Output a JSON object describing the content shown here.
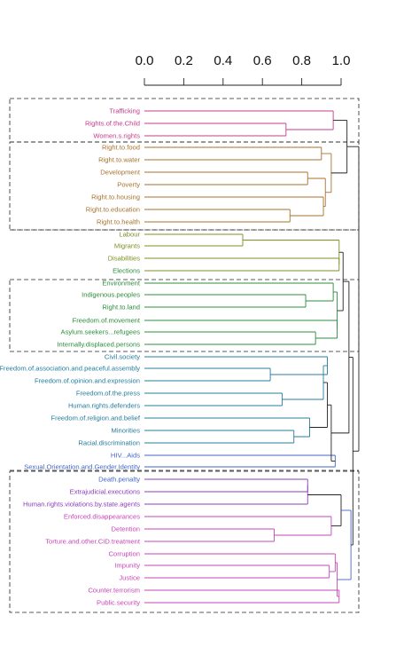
{
  "axis": {
    "ticks": [
      "0.0",
      "0.2",
      "0.4",
      "0.6",
      "0.8",
      "1.0"
    ]
  },
  "colors": {
    "magenta": "#c43c8a",
    "brown": "#a8722e",
    "olive": "#7c8f22",
    "green": "#2c8c3c",
    "teal": "#267c9e",
    "blue": "#4266c8",
    "purple": "#8c3cbc",
    "pink": "#c845b8",
    "black": "#222222"
  },
  "labels": [
    "Trafficking",
    "Rights.of.the.Child",
    "Women.s.rights",
    "Right.to.food",
    "Right.to.water",
    "Development",
    "Poverty",
    "Right.to.housing",
    "Right.to.education",
    "Right.to.health",
    "Labour",
    "Migrants",
    "Disabilities",
    "Elections",
    "Environment",
    "Indigenous.peoples",
    "Right.to.land",
    "Freedom.of.movement",
    "Asylum.seekers...refugees",
    "Internally.displaced.persons",
    "Civil.society",
    "Freedom.of.association.and.peaceful.assembly",
    "Freedom.of.opinion.and.expression",
    "Freedom.of.the.press",
    "Human.rights.defenders",
    "Freedom.of.religion.and.belief",
    "Minorities",
    "Racial.discrimination",
    "HIV...Aids",
    "Sexual.Orientation.and.Gender.Identity",
    "Death.penalty",
    "Extrajudicial.executions",
    "Human.rights.violations.by.state.agents",
    "Enforced.disappearances",
    "Detention",
    "Torture.and.other.CID.treatment",
    "Corruption",
    "Impunity",
    "Justice",
    "Counter.terrorism",
    "Public.security"
  ]
}
